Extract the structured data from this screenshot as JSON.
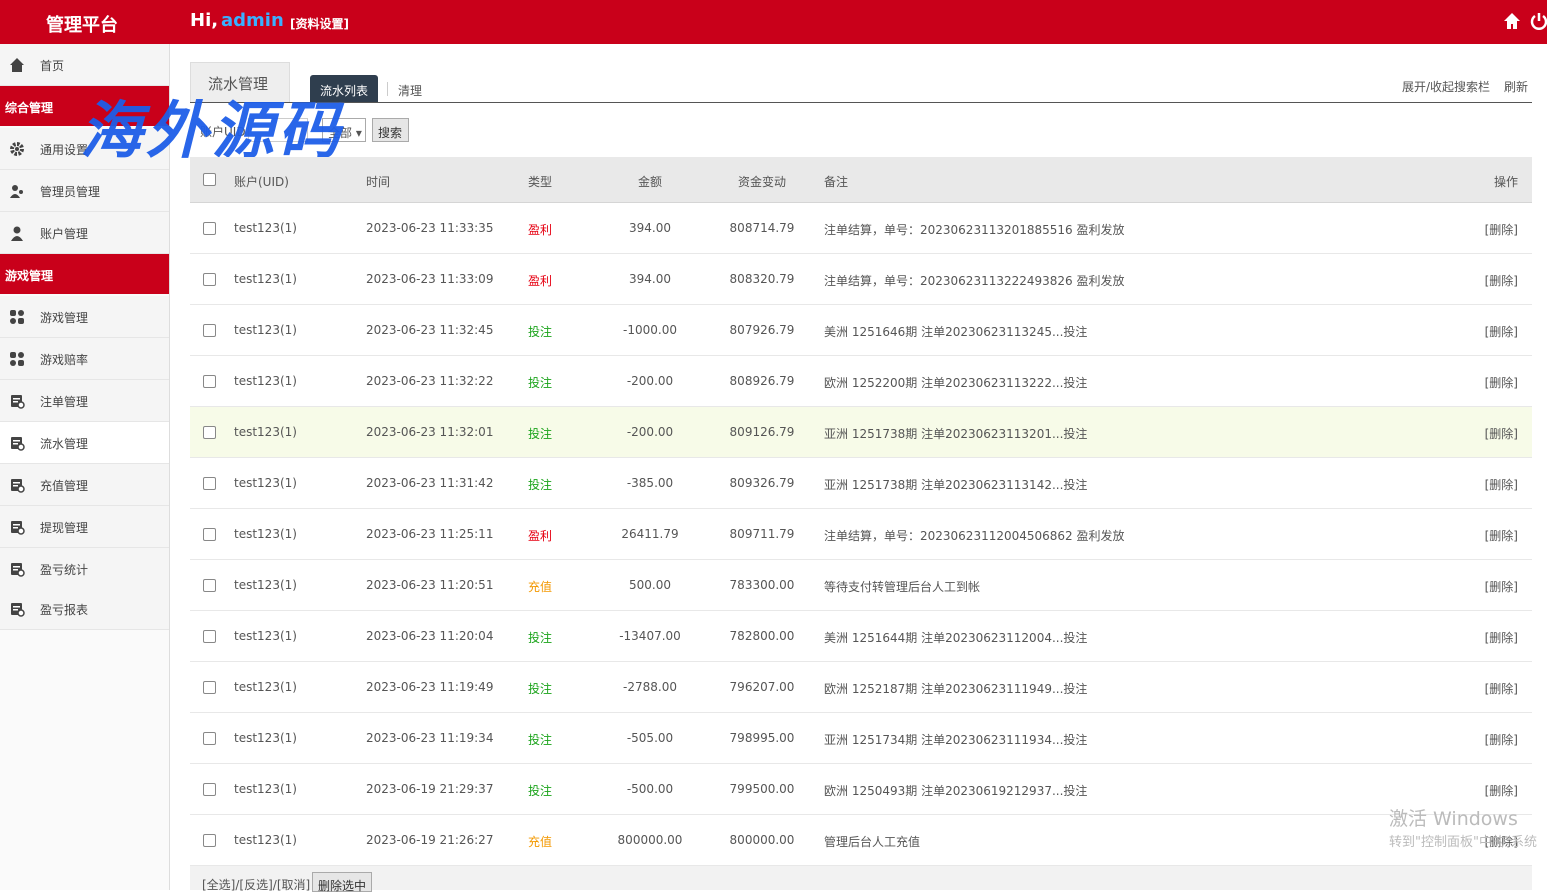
{
  "header": {
    "brand": "管理平台",
    "greeting": "Hi,",
    "user": "admin",
    "profile_link": "[资料设置]"
  },
  "sidebar": {
    "items": [
      {
        "label": "首页",
        "kind": "item",
        "icon": "home"
      },
      {
        "label": "综合管理",
        "kind": "section"
      },
      {
        "label": "通用设置",
        "kind": "item",
        "icon": "gear"
      },
      {
        "label": "管理员管理",
        "kind": "item",
        "icon": "users"
      },
      {
        "label": "账户管理",
        "kind": "item",
        "icon": "user"
      },
      {
        "label": "游戏管理",
        "kind": "section"
      },
      {
        "label": "游戏管理",
        "kind": "item",
        "icon": "grid"
      },
      {
        "label": "游戏赔率",
        "kind": "item",
        "icon": "grid"
      },
      {
        "label": "注单管理",
        "kind": "item",
        "icon": "doc"
      },
      {
        "label": "流水管理",
        "kind": "item",
        "icon": "doc",
        "active": true
      },
      {
        "label": "充值管理",
        "kind": "item",
        "icon": "doc"
      },
      {
        "label": "提现管理",
        "kind": "item",
        "icon": "doc"
      },
      {
        "label": "盈亏统计",
        "kind": "item",
        "icon": "doc"
      },
      {
        "label": "盈亏报表",
        "kind": "item",
        "icon": "doc"
      }
    ]
  },
  "tabs": {
    "title": "流水管理",
    "active": "流水列表",
    "other": "清理",
    "toggle": "展开/收起搜索栏",
    "refresh": "刷新"
  },
  "search": {
    "label": "账户UID",
    "select": "全部",
    "button": "搜索"
  },
  "table": {
    "columns": [
      "账户(UID)",
      "时间",
      "类型",
      "金额",
      "资金变动",
      "备注",
      "操作"
    ],
    "rows": [
      {
        "account": "test123(1)",
        "time": "2023-06-23 11:33:35",
        "type": "盈利",
        "amount": "394.00",
        "change": "808714.79",
        "remark": "注单结算，单号：20230623113201885516 盈利发放",
        "action": "[删除]",
        "type_color": "#e60012"
      },
      {
        "account": "test123(1)",
        "time": "2023-06-23 11:33:09",
        "type": "盈利",
        "amount": "394.00",
        "change": "808320.79",
        "remark": "注单结算，单号：20230623113222493826 盈利发放",
        "action": "[删除]",
        "type_color": "#e60012"
      },
      {
        "account": "test123(1)",
        "time": "2023-06-23 11:32:45",
        "type": "投注",
        "amount": "-1000.00",
        "change": "807926.79",
        "remark": "美洲 1251646期 注单20230623113245...投注",
        "action": "[删除]",
        "type_color": "#1aa31a"
      },
      {
        "account": "test123(1)",
        "time": "2023-06-23 11:32:22",
        "type": "投注",
        "amount": "-200.00",
        "change": "808926.79",
        "remark": "欧洲 1252200期 注单20230623113222...投注",
        "action": "[删除]",
        "type_color": "#1aa31a"
      },
      {
        "account": "test123(1)",
        "time": "2023-06-23 11:32:01",
        "type": "投注",
        "amount": "-200.00",
        "change": "809126.79",
        "remark": "亚洲 1251738期 注单20230623113201...投注",
        "action": "[删除]",
        "type_color": "#1aa31a",
        "highlighted": true
      },
      {
        "account": "test123(1)",
        "time": "2023-06-23 11:31:42",
        "type": "投注",
        "amount": "-385.00",
        "change": "809326.79",
        "remark": "亚洲 1251738期 注单20230623113142...投注",
        "action": "[删除]",
        "type_color": "#1aa31a"
      },
      {
        "account": "test123(1)",
        "time": "2023-06-23 11:25:11",
        "type": "盈利",
        "amount": "26411.79",
        "change": "809711.79",
        "remark": "注单结算，单号：20230623112004506862 盈利发放",
        "action": "[删除]",
        "type_color": "#e60012"
      },
      {
        "account": "test123(1)",
        "time": "2023-06-23 11:20:51",
        "type": "充值",
        "amount": "500.00",
        "change": "783300.00",
        "remark": "等待支付转管理后台人工到帐",
        "action": "[删除]",
        "type_color": "#f39800"
      },
      {
        "account": "test123(1)",
        "time": "2023-06-23 11:20:04",
        "type": "投注",
        "amount": "-13407.00",
        "change": "782800.00",
        "remark": "美洲 1251644期 注单20230623112004...投注",
        "action": "[删除]",
        "type_color": "#1aa31a"
      },
      {
        "account": "test123(1)",
        "time": "2023-06-23 11:19:49",
        "type": "投注",
        "amount": "-2788.00",
        "change": "796207.00",
        "remark": "欧洲 1252187期 注单20230623111949...投注",
        "action": "[删除]",
        "type_color": "#1aa31a"
      },
      {
        "account": "test123(1)",
        "time": "2023-06-23 11:19:34",
        "type": "投注",
        "amount": "-505.00",
        "change": "798995.00",
        "remark": "亚洲 1251734期 注单20230623111934...投注",
        "action": "[删除]",
        "type_color": "#1aa31a"
      },
      {
        "account": "test123(1)",
        "time": "2023-06-19 21:29:37",
        "type": "投注",
        "amount": "-500.00",
        "change": "799500.00",
        "remark": "欧洲 1250493期 注单20230619212937...投注",
        "action": "[删除]",
        "type_color": "#1aa31a"
      },
      {
        "account": "test123(1)",
        "time": "2023-06-19 21:26:27",
        "type": "充值",
        "amount": "800000.00",
        "change": "800000.00",
        "remark": "管理后台人工充值",
        "action": "[删除]",
        "type_color": "#f39800"
      }
    ]
  },
  "footer": {
    "select_links": "[全选]/[反选]/[取消]",
    "delete_button": "删除选中"
  },
  "watermark": "海外源码",
  "os_notice": {
    "title": "激活 Windows",
    "hint": "转到\"控制面板\"中的\"系统"
  }
}
